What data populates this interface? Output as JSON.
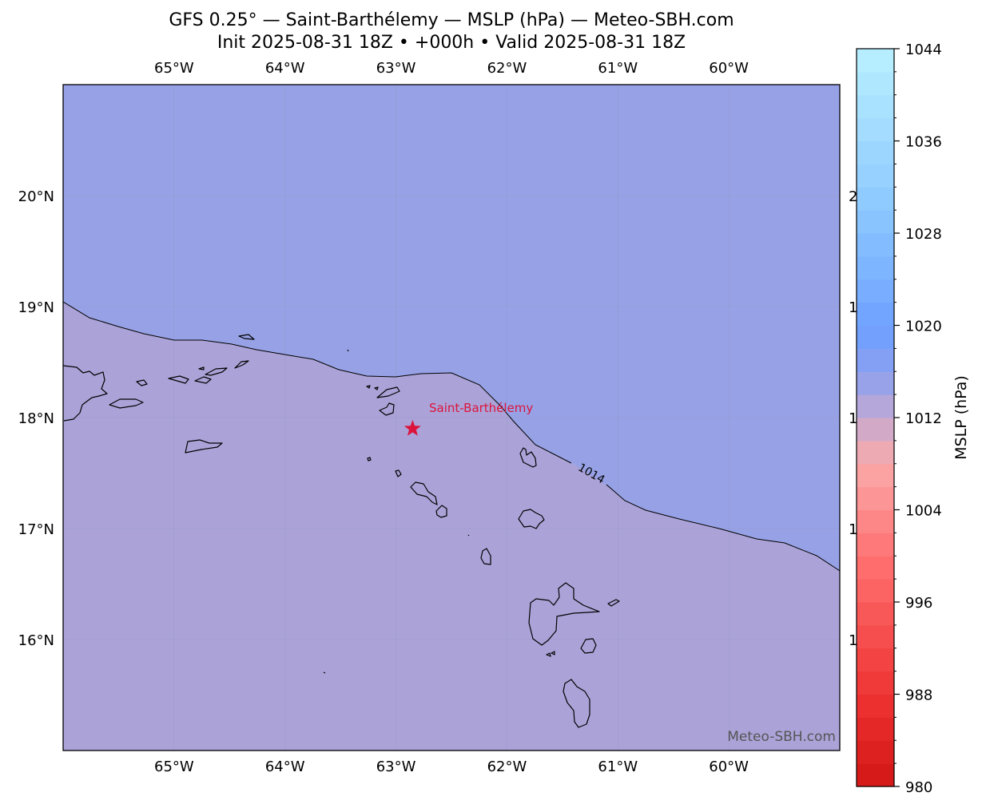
{
  "title": {
    "line1": "GFS 0.25° — Saint-Barthélemy — MSLP (hPa) — Meteo-SBH.com",
    "line2": "Init 2025-08-31 18Z • +000h • Valid 2025-08-31 18Z"
  },
  "map": {
    "lon_range": [
      -66,
      -59
    ],
    "lat_range": [
      15,
      21
    ],
    "lon_ticks": [
      {
        "lon": -65,
        "label": "65°W"
      },
      {
        "lon": -64,
        "label": "64°W"
      },
      {
        "lon": -63,
        "label": "63°W"
      },
      {
        "lon": -62,
        "label": "62°W"
      },
      {
        "lon": -61,
        "label": "61°W"
      },
      {
        "lon": -60,
        "label": "60°W"
      }
    ],
    "lat_ticks": [
      {
        "lat": 20,
        "label": "20°N"
      },
      {
        "lat": 19,
        "label": "19°N"
      },
      {
        "lat": 18,
        "label": "18°N"
      },
      {
        "lat": 17,
        "label": "17°N"
      },
      {
        "lat": 16,
        "label": "16°N"
      }
    ],
    "right_lat_ticks_clipped": [
      "2",
      "1",
      "1",
      "1",
      "1"
    ],
    "fill_north_hPa_range": "1014–1016",
    "fill_south_hPa_range": "1012–1014",
    "fill_north_color": "#97a2e6",
    "fill_south_color": "#aba3d8",
    "contour": {
      "label": "1014"
    },
    "marker": {
      "name": "Saint-Barthélemy",
      "lon": -62.85,
      "lat": 17.9,
      "color": "#dc143c"
    },
    "watermark": "Meteo-SBH.com"
  },
  "colorbar": {
    "label": "MSLP (hPa)",
    "min": 980,
    "max": 1044,
    "step": 2,
    "ticks": [
      "980",
      "988",
      "996",
      "1004",
      "1012",
      "1020",
      "1028",
      "1036",
      "1044"
    ]
  }
}
